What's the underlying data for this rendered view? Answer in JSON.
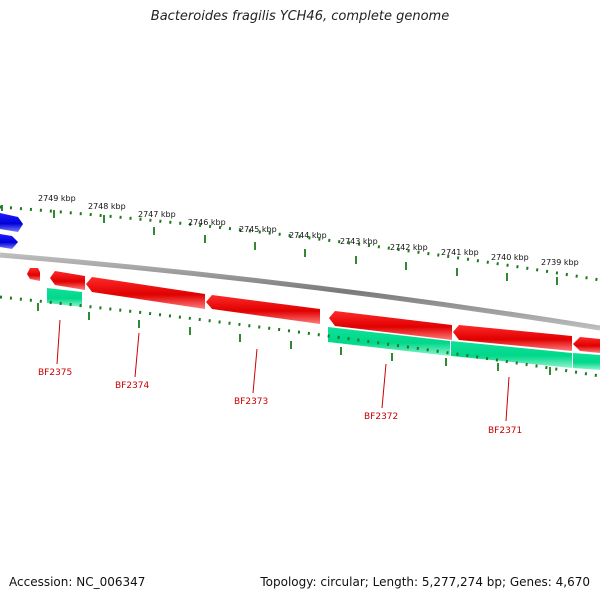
{
  "title": "Bacteroides fragilis YCH46, complete genome",
  "footer": {
    "accession": "Accession: NC_006347",
    "summary": "Topology: circular; Length: 5,277,274 bp; Genes: 4,670"
  },
  "colors": {
    "forward_gene": "#e00000",
    "reverse_gene": "#00e08a",
    "other_gene": "#1010e0",
    "backbone": "#888888",
    "tick": "#1e7a1e",
    "gene_label": "#cc0000"
  },
  "scale_ticks": [
    "2749 kbp",
    "2748 kbp",
    "2747 kbp",
    "2746 kbp",
    "2745 kbp",
    "2744 kbp",
    "2743 kbp",
    "2742 kbp",
    "2741 kbp",
    "2740 kbp",
    "2739 kbp"
  ],
  "gene_labels": [
    "BF2375",
    "BF2374",
    "BF2373",
    "BF2372",
    "BF2371"
  ]
}
